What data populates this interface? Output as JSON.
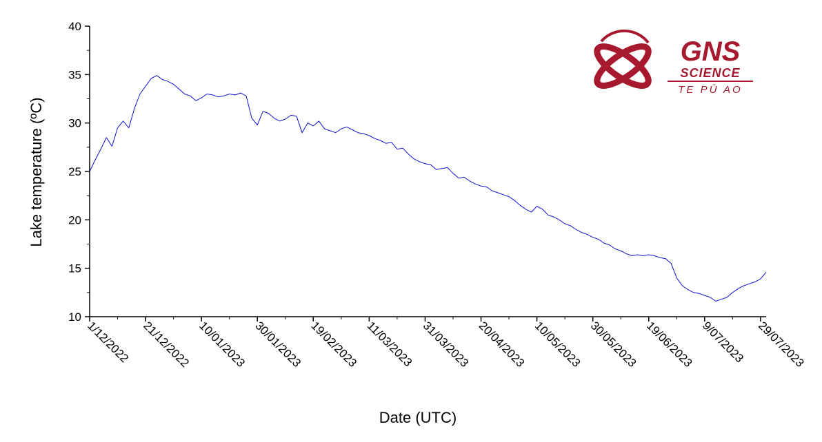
{
  "chart_data": {
    "type": "line",
    "xlabel": "Date (UTC)",
    "ylabel": "Lake temperature (ºC)",
    "ylim": [
      10,
      40
    ],
    "yticks": [
      10,
      15,
      20,
      25,
      30,
      35,
      40
    ],
    "xlim": [
      "2022-12-01",
      "2023-07-31"
    ],
    "xticks": [
      {
        "date": "2022-12-01",
        "label": "1/12/2022"
      },
      {
        "date": "2022-12-21",
        "label": "21/12/2022"
      },
      {
        "date": "2023-01-10",
        "label": "10/01/2023"
      },
      {
        "date": "2023-01-30",
        "label": "30/01/2023"
      },
      {
        "date": "2023-02-19",
        "label": "19/02/2023"
      },
      {
        "date": "2023-03-11",
        "label": "11/03/2023"
      },
      {
        "date": "2023-03-31",
        "label": "31/03/2023"
      },
      {
        "date": "2023-04-20",
        "label": "20/04/2023"
      },
      {
        "date": "2023-05-10",
        "label": "10/05/2023"
      },
      {
        "date": "2023-05-30",
        "label": "30/05/2023"
      },
      {
        "date": "2023-06-19",
        "label": "19/06/2023"
      },
      {
        "date": "2023-07-09",
        "label": "9/07/2023"
      },
      {
        "date": "2023-07-29",
        "label": "29/07/2023"
      }
    ],
    "grid": false,
    "color": "#1010d0",
    "series": [
      {
        "x": [
          "2022-12-01",
          "2022-12-03",
          "2022-12-05",
          "2022-12-07",
          "2022-12-09",
          "2022-12-11",
          "2022-12-13",
          "2022-12-15",
          "2022-12-17",
          "2022-12-19",
          "2022-12-21",
          "2022-12-23",
          "2022-12-25",
          "2022-12-27",
          "2022-12-29",
          "2022-12-31",
          "2023-01-02",
          "2023-01-04",
          "2023-01-06",
          "2023-01-08",
          "2023-01-10",
          "2023-01-12",
          "2023-01-14",
          "2023-01-16",
          "2023-01-18",
          "2023-01-20",
          "2023-01-22",
          "2023-01-24",
          "2023-01-26",
          "2023-01-28",
          "2023-01-30",
          "2023-02-01",
          "2023-02-03",
          "2023-02-05",
          "2023-02-07",
          "2023-02-09",
          "2023-02-11",
          "2023-02-13",
          "2023-02-15",
          "2023-02-17",
          "2023-02-19",
          "2023-02-21",
          "2023-02-23",
          "2023-02-25",
          "2023-02-27",
          "2023-03-01",
          "2023-03-03",
          "2023-03-05",
          "2023-03-07",
          "2023-03-09",
          "2023-03-11",
          "2023-03-13",
          "2023-03-15",
          "2023-03-17",
          "2023-03-19",
          "2023-03-21",
          "2023-03-23",
          "2023-03-25",
          "2023-03-27",
          "2023-03-29",
          "2023-03-31",
          "2023-04-02",
          "2023-04-04",
          "2023-04-06",
          "2023-04-08",
          "2023-04-10",
          "2023-04-12",
          "2023-04-14",
          "2023-04-16",
          "2023-04-18",
          "2023-04-20",
          "2023-04-22",
          "2023-04-24",
          "2023-04-26",
          "2023-04-28",
          "2023-04-30",
          "2023-05-02",
          "2023-05-04",
          "2023-05-06",
          "2023-05-08",
          "2023-05-10",
          "2023-05-12",
          "2023-05-14",
          "2023-05-16",
          "2023-05-18",
          "2023-05-20",
          "2023-05-22",
          "2023-05-24",
          "2023-05-26",
          "2023-05-28",
          "2023-05-30",
          "2023-06-01",
          "2023-06-03",
          "2023-06-05",
          "2023-06-07",
          "2023-06-09",
          "2023-06-11",
          "2023-06-13",
          "2023-06-15",
          "2023-06-17",
          "2023-06-19",
          "2023-06-21",
          "2023-06-23",
          "2023-06-25",
          "2023-06-27",
          "2023-06-29",
          "2023-07-01",
          "2023-07-03",
          "2023-07-05",
          "2023-07-07",
          "2023-07-09",
          "2023-07-11",
          "2023-07-13",
          "2023-07-15",
          "2023-07-17",
          "2023-07-19",
          "2023-07-21",
          "2023-07-23",
          "2023-07-25",
          "2023-07-27",
          "2023-07-29",
          "2023-07-31"
        ],
        "y": [
          25.0,
          26.2,
          27.3,
          28.5,
          27.6,
          29.5,
          30.2,
          29.5,
          31.5,
          33.0,
          33.8,
          34.6,
          34.9,
          34.5,
          34.3,
          34.0,
          33.5,
          33.0,
          32.8,
          32.3,
          32.6,
          33.0,
          32.9,
          32.7,
          32.8,
          33.0,
          32.9,
          33.1,
          32.8,
          30.5,
          29.8,
          31.2,
          31.0,
          30.5,
          30.2,
          30.4,
          30.8,
          30.7,
          29.0,
          30.0,
          29.7,
          30.2,
          29.4,
          29.2,
          29.0,
          29.4,
          29.6,
          29.3,
          29.0,
          28.9,
          28.7,
          28.4,
          28.2,
          27.9,
          28.0,
          27.3,
          27.4,
          26.8,
          26.3,
          26.0,
          25.8,
          25.7,
          25.2,
          25.3,
          25.4,
          24.8,
          24.3,
          24.4,
          24.0,
          23.7,
          23.5,
          23.4,
          23.0,
          22.8,
          22.6,
          22.4,
          22.0,
          21.5,
          21.1,
          20.8,
          21.4,
          21.1,
          20.5,
          20.3,
          20.0,
          19.6,
          19.4,
          19.0,
          18.7,
          18.5,
          18.2,
          18.0,
          17.6,
          17.4,
          17.0,
          16.8,
          16.5,
          16.3,
          16.4,
          16.3,
          16.4,
          16.3,
          16.1,
          16.0,
          15.5,
          14.0,
          13.2,
          12.8,
          12.5,
          12.4,
          12.2,
          12.0,
          11.6,
          11.8,
          12.0,
          12.5,
          12.9,
          13.2,
          13.4,
          13.6,
          13.9,
          14.6
        ]
      }
    ],
    "logo": {
      "name": "GNS",
      "line2": "SCIENCE",
      "line3": "TE PŪ AO",
      "color": "#a6192e"
    }
  }
}
